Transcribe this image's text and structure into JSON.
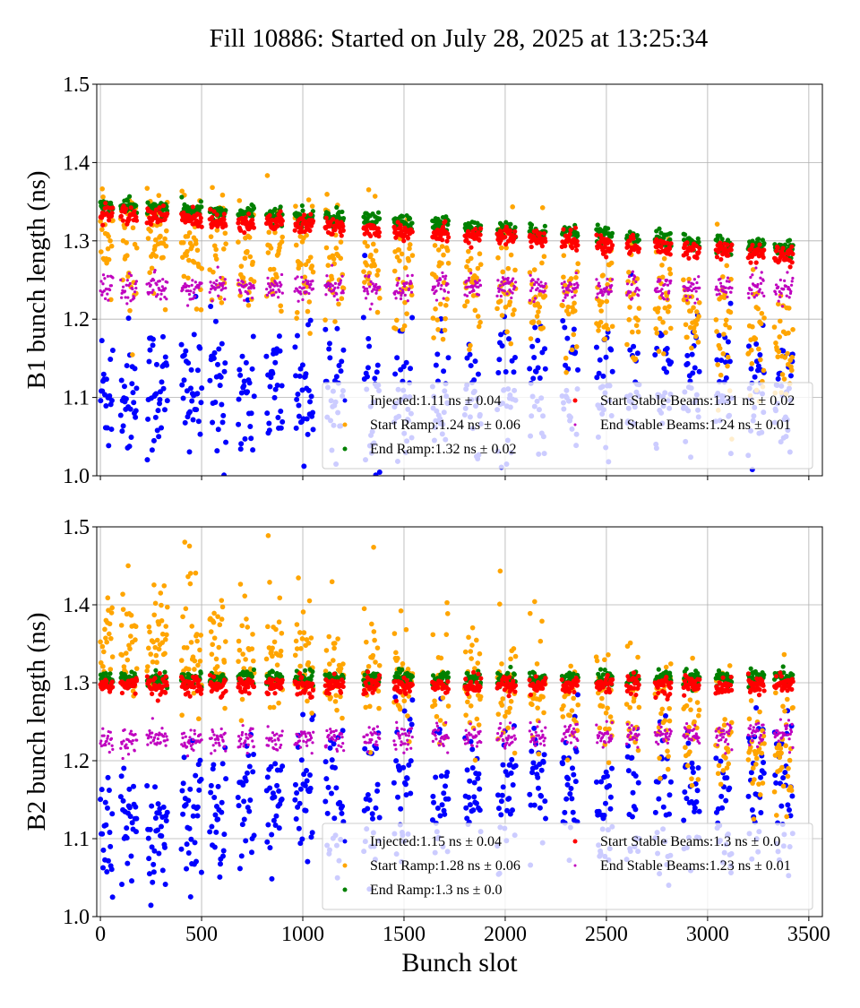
{
  "title": "Fill 10886: Started on July 28, 2025 at 13:25:34",
  "colors": {
    "Injected": "#0000ff",
    "Start Ramp": "#ffa500",
    "End Ramp": "#008000",
    "Start Stable Beams": "#ff0000",
    "End Stable Beams": "#bf00bf"
  },
  "chart_data": [
    {
      "type": "scatter",
      "ylabel": "B1 bunch length (ns)",
      "xlabel": "",
      "xlim": [
        -18,
        3567
      ],
      "ylim": [
        1.0,
        1.5
      ],
      "xticks": [
        0,
        500,
        1000,
        1500,
        2000,
        2500,
        3000,
        3500
      ],
      "yticks": [
        "1.0",
        "1.1",
        "1.2",
        "1.3",
        "1.4",
        "1.5"
      ],
      "xtick_labels_shown": false,
      "grid": true,
      "legend_placement": "lower-right",
      "legend": [
        "Injected:1.11 ns ± 0.04",
        "Start Ramp:1.24 ns ± 0.06",
        "End Ramp:1.32 ns ± 0.02",
        "Start Stable Beams:1.31 ns ± 0.02",
        "End Stable Beams:1.24 ns ± 0.01"
      ],
      "series": [
        {
          "name": "Injected",
          "mean": 1.11,
          "std": 0.04,
          "profile": [
            [
              0,
              1.11
            ],
            [
              1700,
              1.11
            ],
            [
              3420,
              1.11
            ]
          ]
        },
        {
          "name": "Start Ramp",
          "mean": 1.24,
          "std": 0.06,
          "profile": [
            [
              0,
              1.3
            ],
            [
              1000,
              1.27
            ],
            [
              2000,
              1.23
            ],
            [
              2600,
              1.21
            ],
            [
              3420,
              1.16
            ]
          ]
        },
        {
          "name": "End Ramp",
          "mean": 1.32,
          "std": 0.02,
          "profile": [
            [
              0,
              1.345
            ],
            [
              1700,
              1.32
            ],
            [
              3420,
              1.29
            ]
          ]
        },
        {
          "name": "Start Stable Beams",
          "mean": 1.31,
          "std": 0.02,
          "profile": [
            [
              0,
              1.335
            ],
            [
              1700,
              1.31
            ],
            [
              3420,
              1.28
            ]
          ]
        },
        {
          "name": "End Stable Beams",
          "mean": 1.24,
          "std": 0.01,
          "profile": [
            [
              0,
              1.24
            ],
            [
              3420,
              1.24
            ]
          ]
        }
      ]
    },
    {
      "type": "scatter",
      "ylabel": "B2 bunch length (ns)",
      "xlabel": "Bunch slot",
      "xlim": [
        -18,
        3567
      ],
      "ylim": [
        1.0,
        1.5
      ],
      "xticks": [
        0,
        500,
        1000,
        1500,
        2000,
        2500,
        3000,
        3500
      ],
      "yticks": [
        "1.0",
        "1.1",
        "1.2",
        "1.3",
        "1.4",
        "1.5"
      ],
      "xtick_labels_shown": true,
      "grid": true,
      "legend_placement": "lower-right",
      "legend": [
        "Injected:1.15 ns ± 0.04",
        "Start Ramp:1.28 ns ± 0.06",
        "End Ramp:1.3 ns ± 0.0",
        "Start Stable Beams:1.3 ns ± 0.0",
        "End Stable Beams:1.23 ns ± 0.01"
      ],
      "series": [
        {
          "name": "Injected",
          "mean": 1.15,
          "std": 0.04,
          "profile": [
            [
              0,
              1.11
            ],
            [
              800,
              1.15
            ],
            [
              1500,
              1.16
            ],
            [
              3420,
              1.15
            ]
          ]
        },
        {
          "name": "Start Ramp",
          "mean": 1.28,
          "std": 0.06,
          "profile": [
            [
              0,
              1.35
            ],
            [
              800,
              1.33
            ],
            [
              1500,
              1.3
            ],
            [
              2500,
              1.27
            ],
            [
              3420,
              1.2
            ]
          ]
        },
        {
          "name": "End Ramp",
          "mean": 1.3,
          "std": 0.0,
          "profile": [
            [
              0,
              1.305
            ],
            [
              3420,
              1.305
            ]
          ]
        },
        {
          "name": "Start Stable Beams",
          "mean": 1.3,
          "std": 0.0,
          "profile": [
            [
              0,
              1.297
            ],
            [
              3420,
              1.297
            ]
          ]
        },
        {
          "name": "End Stable Beams",
          "mean": 1.23,
          "std": 0.01,
          "profile": [
            [
              0,
              1.225
            ],
            [
              3420,
              1.235
            ]
          ]
        }
      ]
    }
  ],
  "trains": [
    [
      0,
      60
    ],
    [
      100,
      180
    ],
    [
      230,
      330
    ],
    [
      400,
      500
    ],
    [
      540,
      620
    ],
    [
      680,
      760
    ],
    [
      820,
      900
    ],
    [
      960,
      1050
    ],
    [
      1110,
      1200
    ],
    [
      1300,
      1380
    ],
    [
      1450,
      1540
    ],
    [
      1640,
      1720
    ],
    [
      1800,
      1880
    ],
    [
      1960,
      2050
    ],
    [
      2120,
      2200
    ],
    [
      2280,
      2360
    ],
    [
      2450,
      2530
    ],
    [
      2600,
      2660
    ],
    [
      2740,
      2820
    ],
    [
      2880,
      2960
    ],
    [
      3040,
      3120
    ],
    [
      3200,
      3280
    ],
    [
      3330,
      3420
    ]
  ]
}
